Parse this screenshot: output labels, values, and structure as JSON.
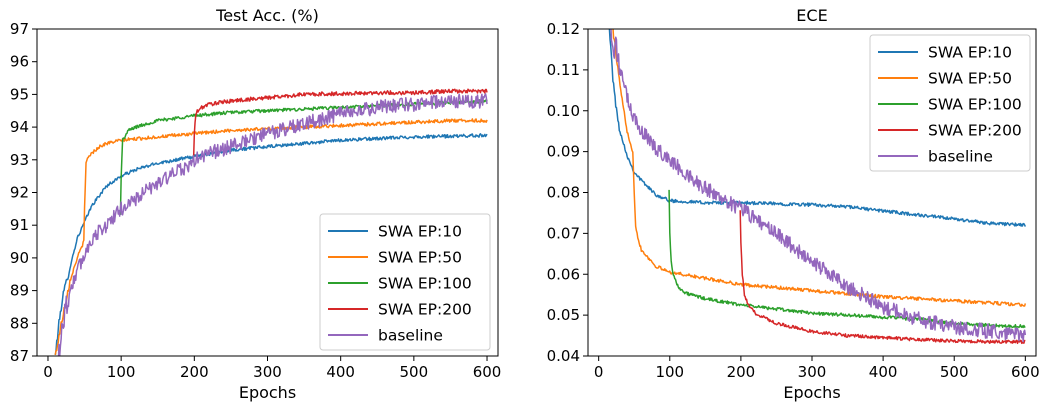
{
  "chart_data": [
    {
      "type": "line",
      "title": "Test Acc. (%)",
      "xlabel": "Epochs",
      "ylabel": "",
      "xlim": [
        -15,
        615
      ],
      "ylim": [
        87,
        97
      ],
      "xticks": [
        0,
        100,
        200,
        300,
        400,
        500,
        600
      ],
      "yticks": [
        87,
        88,
        89,
        90,
        91,
        92,
        93,
        94,
        95,
        96,
        97
      ],
      "ytick_labels": [
        "87",
        "88",
        "89",
        "90",
        "91",
        "92",
        "93",
        "94",
        "95",
        "96",
        "97"
      ],
      "legend_position": "lower right",
      "series": [
        {
          "name": "SWA EP:10",
          "color": "#1f77b4",
          "noise": 0.05,
          "x": [
            10,
            15,
            20,
            30,
            40,
            50,
            60,
            70,
            80,
            100,
            120,
            150,
            200,
            250,
            300,
            350,
            400,
            450,
            500,
            550,
            600
          ],
          "values": [
            87.0,
            88.0,
            88.8,
            89.7,
            90.6,
            91.1,
            91.6,
            91.9,
            92.2,
            92.5,
            92.7,
            92.9,
            93.1,
            93.3,
            93.4,
            93.5,
            93.6,
            93.65,
            93.7,
            93.72,
            93.75
          ]
        },
        {
          "name": "SWA EP:50",
          "color": "#ff7f0e",
          "noise": 0.05,
          "x": [
            10,
            20,
            30,
            40,
            49,
            50,
            52,
            55,
            60,
            70,
            80,
            100,
            150,
            200,
            250,
            300,
            350,
            400,
            450,
            500,
            550,
            600
          ],
          "values": [
            87.0,
            88.2,
            89.3,
            90.0,
            90.5,
            91.5,
            92.9,
            93.1,
            93.2,
            93.4,
            93.5,
            93.6,
            93.7,
            93.8,
            93.9,
            93.95,
            94.0,
            94.05,
            94.1,
            94.15,
            94.2,
            94.2
          ]
        },
        {
          "name": "SWA EP:100",
          "color": "#2ca02c",
          "noise": 0.05,
          "x": [
            99,
            100,
            102,
            105,
            110,
            120,
            150,
            200,
            250,
            300,
            350,
            400,
            450,
            500,
            550,
            600
          ],
          "values": [
            91.3,
            92.5,
            93.6,
            93.7,
            93.9,
            94.0,
            94.2,
            94.35,
            94.45,
            94.5,
            94.55,
            94.6,
            94.65,
            94.7,
            94.75,
            94.8
          ]
        },
        {
          "name": "SWA EP:200",
          "color": "#d62728",
          "noise": 0.06,
          "x": [
            199,
            200,
            202,
            205,
            210,
            220,
            250,
            300,
            350,
            400,
            450,
            500,
            550,
            600
          ],
          "values": [
            93.0,
            93.8,
            94.4,
            94.5,
            94.6,
            94.7,
            94.8,
            94.9,
            95.0,
            95.02,
            95.05,
            95.05,
            95.1,
            95.1
          ]
        },
        {
          "name": "baseline",
          "color": "#9467bd",
          "noise": 0.22,
          "x": [
            10,
            15,
            20,
            30,
            40,
            50,
            60,
            80,
            100,
            120,
            150,
            199,
            200,
            220,
            250,
            300,
            350,
            400,
            450,
            500,
            550,
            600
          ],
          "values": [
            86.5,
            87.2,
            88.0,
            89.0,
            89.6,
            90.1,
            90.6,
            91.0,
            91.5,
            91.8,
            92.3,
            92.9,
            93.0,
            93.2,
            93.4,
            93.8,
            94.1,
            94.4,
            94.6,
            94.7,
            94.8,
            94.8
          ]
        }
      ]
    },
    {
      "type": "line",
      "title": "ECE",
      "xlabel": "Epochs",
      "ylabel": "",
      "xlim": [
        -15,
        615
      ],
      "ylim": [
        0.04,
        0.12
      ],
      "xticks": [
        0,
        100,
        200,
        300,
        400,
        500,
        600
      ],
      "yticks": [
        0.04,
        0.05,
        0.06,
        0.07,
        0.08,
        0.09,
        0.1,
        0.11,
        0.12
      ],
      "ytick_labels": [
        "0.04",
        "0.05",
        "0.06",
        "0.07",
        "0.08",
        "0.09",
        "0.10",
        "0.11",
        "0.12"
      ],
      "legend_position": "upper right",
      "series": [
        {
          "name": "SWA EP:10",
          "color": "#1f77b4",
          "noise": 0.0004,
          "x": [
            10,
            15,
            20,
            25,
            30,
            40,
            50,
            60,
            80,
            100,
            150,
            200,
            300,
            350,
            400,
            450,
            500,
            550,
            600
          ],
          "values": [
            0.135,
            0.12,
            0.108,
            0.1,
            0.095,
            0.089,
            0.085,
            0.083,
            0.0795,
            0.078,
            0.0775,
            0.0775,
            0.077,
            0.0765,
            0.0755,
            0.0745,
            0.0735,
            0.0725,
            0.072
          ]
        },
        {
          "name": "SWA EP:50",
          "color": "#ff7f0e",
          "noise": 0.0004,
          "x": [
            10,
            20,
            30,
            40,
            48,
            50,
            52,
            55,
            60,
            70,
            80,
            100,
            150,
            200,
            300,
            400,
            450,
            500,
            550,
            600
          ],
          "values": [
            0.135,
            0.12,
            0.106,
            0.095,
            0.09,
            0.08,
            0.072,
            0.069,
            0.066,
            0.064,
            0.062,
            0.0605,
            0.059,
            0.0575,
            0.056,
            0.0545,
            0.054,
            0.0535,
            0.053,
            0.0525
          ]
        },
        {
          "name": "SWA EP:100",
          "color": "#2ca02c",
          "noise": 0.0004,
          "x": [
            99,
            100,
            102,
            105,
            110,
            120,
            150,
            200,
            250,
            300,
            400,
            450,
            500,
            550,
            600
          ],
          "values": [
            0.081,
            0.07,
            0.063,
            0.06,
            0.0575,
            0.0555,
            0.054,
            0.0525,
            0.0515,
            0.0505,
            0.0495,
            0.049,
            0.048,
            0.0475,
            0.0472
          ]
        },
        {
          "name": "SWA EP:200",
          "color": "#d62728",
          "noise": 0.0004,
          "x": [
            199,
            200,
            202,
            205,
            210,
            220,
            250,
            300,
            350,
            400,
            450,
            500,
            550,
            600
          ],
          "values": [
            0.076,
            0.068,
            0.06,
            0.055,
            0.0525,
            0.0505,
            0.048,
            0.046,
            0.045,
            0.0445,
            0.044,
            0.0437,
            0.0435,
            0.0435
          ]
        },
        {
          "name": "baseline",
          "color": "#9467bd",
          "noise": 0.0018,
          "x": [
            10,
            15,
            20,
            30,
            40,
            50,
            60,
            80,
            100,
            120,
            150,
            200,
            250,
            300,
            350,
            400,
            450,
            500,
            550,
            600
          ],
          "values": [
            0.13,
            0.125,
            0.118,
            0.11,
            0.103,
            0.098,
            0.095,
            0.091,
            0.088,
            0.085,
            0.081,
            0.076,
            0.07,
            0.063,
            0.057,
            0.052,
            0.049,
            0.047,
            0.046,
            0.045
          ]
        }
      ]
    }
  ]
}
